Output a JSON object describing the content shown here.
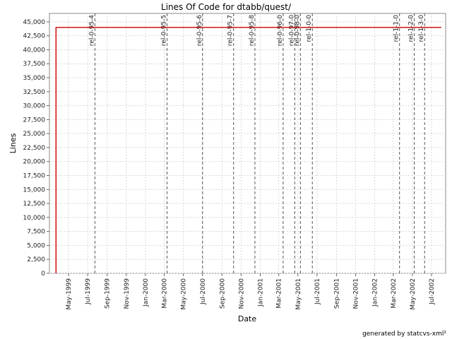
{
  "chart_data": {
    "type": "line",
    "title": "Lines Of Code for dtabb/quest/",
    "xlabel": "Date",
    "ylabel": "Lines",
    "ylim": [
      0,
      46500
    ],
    "xlim": [
      "1999-03-01",
      "2002-08-15"
    ],
    "grid": true,
    "y_ticks": [
      0,
      2500,
      5000,
      7500,
      10000,
      12500,
      15000,
      17500,
      20000,
      22500,
      25000,
      27500,
      30000,
      32500,
      35000,
      37500,
      40000,
      42500,
      45000
    ],
    "y_tick_labels": [
      "0",
      "2,500",
      "5,000",
      "7,500",
      "10,000",
      "12,500",
      "15,000",
      "17,500",
      "20,000",
      "22,500",
      "25,000",
      "27,500",
      "30,000",
      "32,500",
      "35,000",
      "37,500",
      "40,000",
      "42,500",
      "45,000"
    ],
    "x_ticks": [
      {
        "label": "May-1999",
        "date": "1999-05-01"
      },
      {
        "label": "Jul-1999",
        "date": "1999-07-01"
      },
      {
        "label": "Sep-1999",
        "date": "1999-09-01"
      },
      {
        "label": "Nov-1999",
        "date": "1999-11-01"
      },
      {
        "label": "Jan-2000",
        "date": "2000-01-01"
      },
      {
        "label": "Mar-2000",
        "date": "2000-03-01"
      },
      {
        "label": "May-2000",
        "date": "2000-05-01"
      },
      {
        "label": "Jul-2000",
        "date": "2000-07-01"
      },
      {
        "label": "Sep-2000",
        "date": "2000-09-01"
      },
      {
        "label": "Nov-2000",
        "date": "2000-11-01"
      },
      {
        "label": "Jan-2001",
        "date": "2001-01-01"
      },
      {
        "label": "Mar-2001",
        "date": "2001-03-01"
      },
      {
        "label": "May-2001",
        "date": "2001-05-01"
      },
      {
        "label": "Jul-2001",
        "date": "2001-07-01"
      },
      {
        "label": "Sep-2001",
        "date": "2001-09-01"
      },
      {
        "label": "Nov-2001",
        "date": "2001-11-01"
      },
      {
        "label": "Jan-2002",
        "date": "2002-01-01"
      },
      {
        "label": "Mar-2002",
        "date": "2002-03-01"
      },
      {
        "label": "May-2002",
        "date": "2002-05-01"
      },
      {
        "label": "Jul-2002",
        "date": "2002-07-01"
      }
    ],
    "series": [
      {
        "color": "#cc0000",
        "points": [
          {
            "x": "1999-03-22",
            "y": 0
          },
          {
            "x": "1999-03-22",
            "y": 44000
          },
          {
            "x": "2002-08-01",
            "y": 44000
          }
        ]
      }
    ],
    "tags": [
      {
        "label": "rel-0-95-4",
        "date": "1999-07-24"
      },
      {
        "label": "rel-0-95-5",
        "date": "2000-03-10"
      },
      {
        "label": "rel-0-95-6",
        "date": "2000-07-01"
      },
      {
        "label": "rel-0-95-7",
        "date": "2000-10-08"
      },
      {
        "label": "rel-0-95-8",
        "date": "2000-12-15"
      },
      {
        "label": "rel-0-96-0",
        "date": "2001-03-15"
      },
      {
        "label": "rel-0-97-0",
        "date": "2001-04-21"
      },
      {
        "label": "rel-0-98-0",
        "date": "2001-05-09"
      },
      {
        "label": "rel-1-0-0",
        "date": "2001-06-16"
      },
      {
        "label": "rel-1-1-0",
        "date": "2002-03-21"
      },
      {
        "label": "rel-1-2-0",
        "date": "2002-05-07"
      },
      {
        "label": "rel-1-3-0",
        "date": "2002-06-09"
      }
    ],
    "colors": {
      "line": "#cc0000",
      "tag_line": "#555555",
      "grid": "#d8d8d8"
    }
  },
  "footer": "generated by statcvs-xml²"
}
